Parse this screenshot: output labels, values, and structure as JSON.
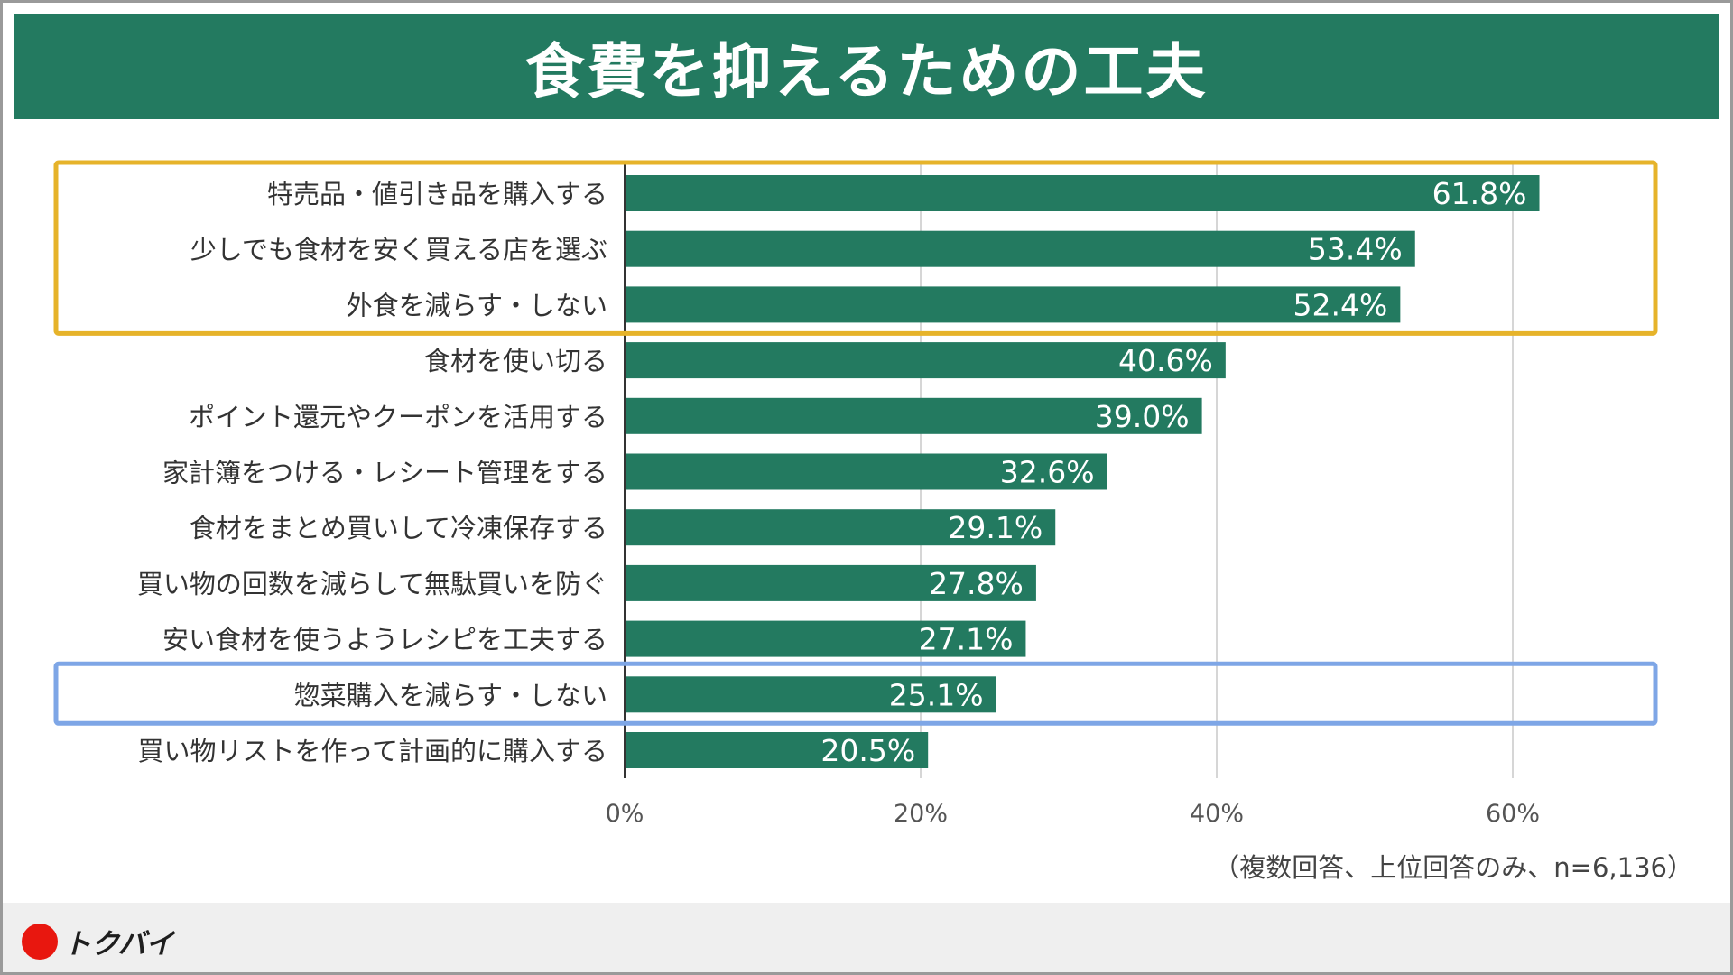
{
  "title": "食費を抑えるための工夫",
  "note": "（複数回答、上位回答のみ、n=6,136）",
  "brand": {
    "name": "トクバイ",
    "mark_color": "#e8170f"
  },
  "colors": {
    "bar": "#237a60",
    "highlight_top": "#e6b32a",
    "highlight_item": "#7ea6e6"
  },
  "chart_data": {
    "type": "bar",
    "orientation": "horizontal",
    "categories": [
      "特売品・値引き品を購入する",
      "少しでも食材を安く買える店を選ぶ",
      "外食を減らす・しない",
      "食材を使い切る",
      "ポイント還元やクーポンを活用する",
      "家計簿をつける・レシート管理をする",
      "食材をまとめ買いして冷凍保存する",
      "買い物の回数を減らして無駄買いを防ぐ",
      "安い食材を使うようレシピを工夫する",
      "惣菜購入を減らす・しない",
      "買い物リストを作って計画的に購入する"
    ],
    "values": [
      61.8,
      53.4,
      52.4,
      40.6,
      39.0,
      32.6,
      29.1,
      27.8,
      27.1,
      25.1,
      20.5
    ],
    "value_labels": [
      "61.8%",
      "53.4%",
      "52.4%",
      "40.6%",
      "39.0%",
      "32.6%",
      "29.1%",
      "27.8%",
      "27.1%",
      "25.1%",
      "20.5%"
    ],
    "xlim": [
      0,
      70
    ],
    "ticks": [
      0,
      20,
      40,
      60
    ],
    "tick_labels": [
      "0%",
      "20%",
      "40%",
      "60%"
    ],
    "grid": true,
    "highlights": [
      {
        "from": 0,
        "to": 2,
        "style": "highlight_top"
      },
      {
        "from": 9,
        "to": 9,
        "style": "highlight_item"
      }
    ]
  }
}
